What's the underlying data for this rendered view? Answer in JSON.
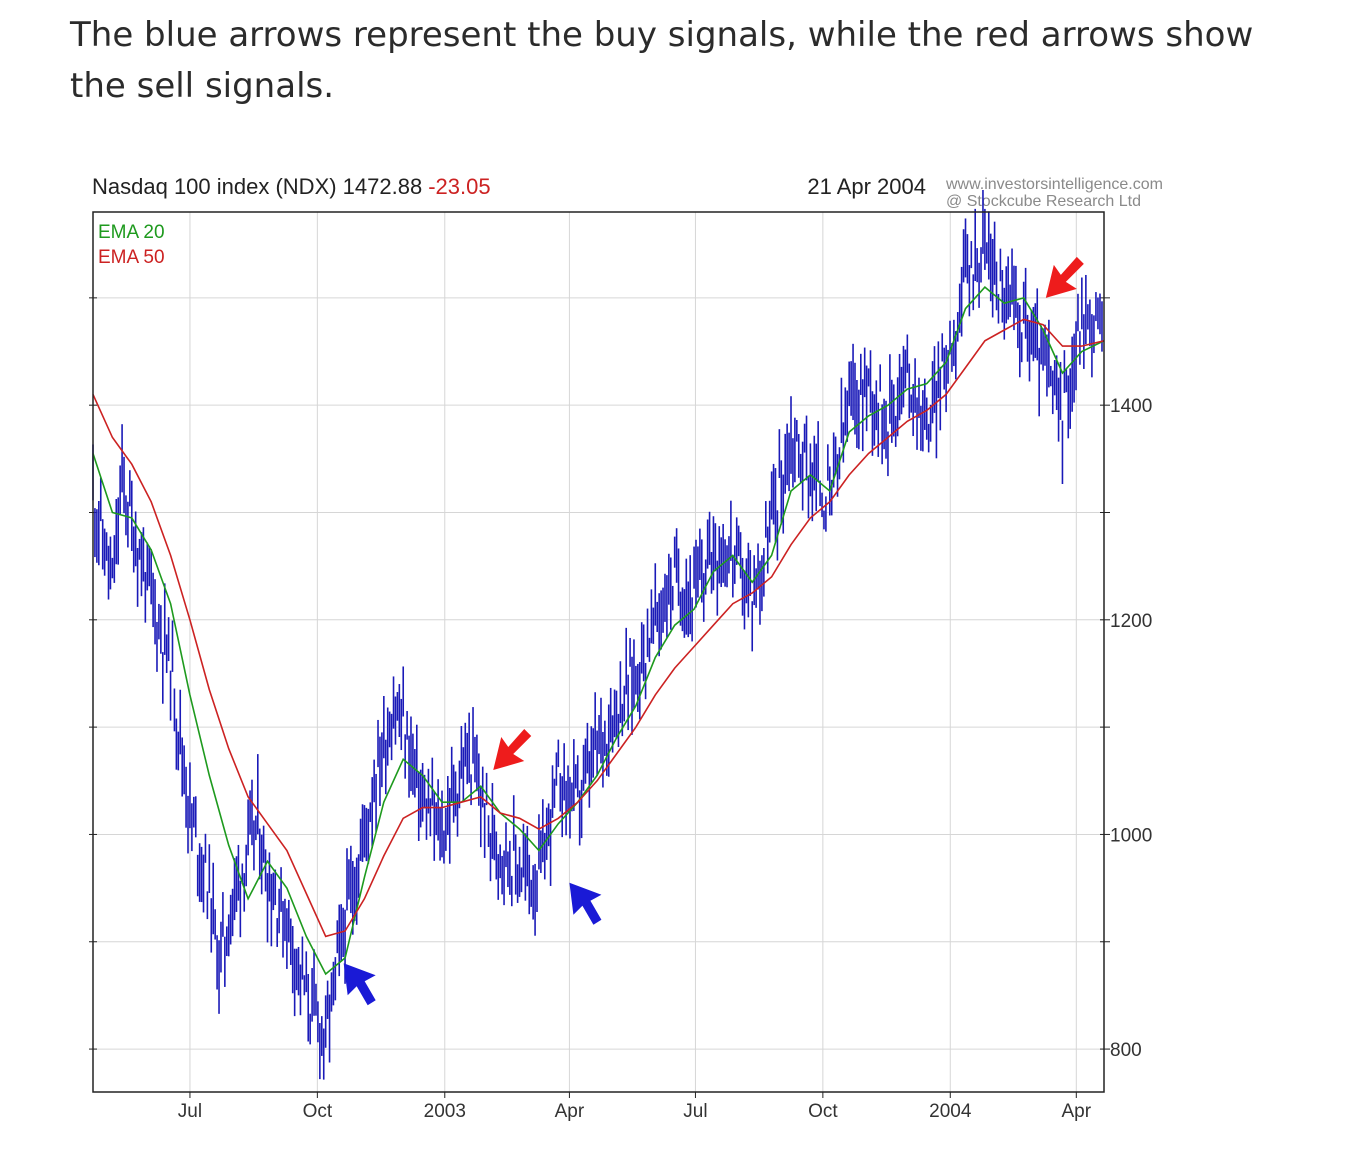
{
  "intro_text": "The blue arrows represent the buy signals, while the red arrows show the sell signals.",
  "chart_data": {
    "type": "line",
    "title": "Nasdaq 100 index (NDX) 1472.88",
    "change": "-23.05",
    "date": "21 Apr 2004",
    "source_line1": "www.investorsintelligence.com",
    "source_line2": "@ Stockcube Research Ltd",
    "colors": {
      "price": "#1a1ab8",
      "ema20": "#1e9a1e",
      "ema50": "#cc2222",
      "change": "#cc2222",
      "buy_arrow": "#1a1ad6",
      "sell_arrow": "#ee1c1c"
    },
    "xlabel": "",
    "ylabel": "",
    "xlim": [
      "2002-04-22",
      "2004-04-21"
    ],
    "ylim": [
      760,
      1580
    ],
    "grid": true,
    "y_ticks": [
      800,
      1000,
      1200,
      1400
    ],
    "x_ticks": [
      {
        "label": "Jul",
        "date": "2002-07-01"
      },
      {
        "label": "Oct",
        "date": "2002-10-01"
      },
      {
        "label": "2003",
        "date": "2003-01-01"
      },
      {
        "label": "Apr",
        "date": "2003-04-01"
      },
      {
        "label": "Jul",
        "date": "2003-07-01"
      },
      {
        "label": "Oct",
        "date": "2003-10-01"
      },
      {
        "label": "2004",
        "date": "2004-01-01"
      },
      {
        "label": "Apr",
        "date": "2004-04-01"
      }
    ],
    "series": [
      {
        "name": "EMA 20",
        "points": [
          [
            "2002-04-22",
            1355
          ],
          [
            "2002-05-06",
            1300
          ],
          [
            "2002-05-20",
            1295
          ],
          [
            "2002-06-03",
            1265
          ],
          [
            "2002-06-17",
            1215
          ],
          [
            "2002-07-01",
            1130
          ],
          [
            "2002-07-15",
            1055
          ],
          [
            "2002-07-29",
            990
          ],
          [
            "2002-08-12",
            940
          ],
          [
            "2002-08-26",
            975
          ],
          [
            "2002-09-09",
            950
          ],
          [
            "2002-09-23",
            905
          ],
          [
            "2002-10-07",
            870
          ],
          [
            "2002-10-21",
            885
          ],
          [
            "2002-11-04",
            960
          ],
          [
            "2002-11-18",
            1030
          ],
          [
            "2002-12-02",
            1070
          ],
          [
            "2002-12-16",
            1055
          ],
          [
            "2002-12-30",
            1030
          ],
          [
            "2003-01-13",
            1030
          ],
          [
            "2003-01-27",
            1045
          ],
          [
            "2003-02-10",
            1020
          ],
          [
            "2003-02-24",
            1005
          ],
          [
            "2003-03-10",
            985
          ],
          [
            "2003-03-24",
            1010
          ],
          [
            "2003-04-07",
            1030
          ],
          [
            "2003-04-21",
            1055
          ],
          [
            "2003-05-05",
            1090
          ],
          [
            "2003-05-19",
            1120
          ],
          [
            "2003-06-02",
            1165
          ],
          [
            "2003-06-16",
            1195
          ],
          [
            "2003-06-30",
            1210
          ],
          [
            "2003-07-14",
            1245
          ],
          [
            "2003-07-28",
            1260
          ],
          [
            "2003-08-11",
            1235
          ],
          [
            "2003-08-25",
            1260
          ],
          [
            "2003-09-08",
            1320
          ],
          [
            "2003-09-22",
            1335
          ],
          [
            "2003-10-06",
            1320
          ],
          [
            "2003-10-20",
            1375
          ],
          [
            "2003-11-03",
            1390
          ],
          [
            "2003-11-17",
            1400
          ],
          [
            "2003-12-01",
            1415
          ],
          [
            "2003-12-15",
            1420
          ],
          [
            "2003-12-29",
            1440
          ],
          [
            "2004-01-12",
            1490
          ],
          [
            "2004-01-26",
            1510
          ],
          [
            "2004-02-09",
            1495
          ],
          [
            "2004-02-23",
            1500
          ],
          [
            "2004-03-08",
            1470
          ],
          [
            "2004-03-22",
            1430
          ],
          [
            "2004-04-05",
            1450
          ],
          [
            "2004-04-21",
            1460
          ]
        ]
      },
      {
        "name": "EMA 50",
        "points": [
          [
            "2002-04-22",
            1410
          ],
          [
            "2002-05-06",
            1370
          ],
          [
            "2002-05-20",
            1345
          ],
          [
            "2002-06-03",
            1310
          ],
          [
            "2002-06-17",
            1260
          ],
          [
            "2002-07-01",
            1200
          ],
          [
            "2002-07-15",
            1135
          ],
          [
            "2002-07-29",
            1080
          ],
          [
            "2002-08-12",
            1035
          ],
          [
            "2002-08-26",
            1010
          ],
          [
            "2002-09-09",
            985
          ],
          [
            "2002-09-23",
            945
          ],
          [
            "2002-10-07",
            905
          ],
          [
            "2002-10-21",
            910
          ],
          [
            "2002-11-04",
            940
          ],
          [
            "2002-11-18",
            980
          ],
          [
            "2002-12-02",
            1015
          ],
          [
            "2002-12-16",
            1025
          ],
          [
            "2002-12-30",
            1025
          ],
          [
            "2003-01-13",
            1030
          ],
          [
            "2003-01-27",
            1035
          ],
          [
            "2003-02-10",
            1020
          ],
          [
            "2003-02-24",
            1015
          ],
          [
            "2003-03-10",
            1005
          ],
          [
            "2003-03-24",
            1015
          ],
          [
            "2003-04-07",
            1030
          ],
          [
            "2003-04-21",
            1050
          ],
          [
            "2003-05-05",
            1075
          ],
          [
            "2003-05-19",
            1100
          ],
          [
            "2003-06-02",
            1130
          ],
          [
            "2003-06-16",
            1155
          ],
          [
            "2003-06-30",
            1175
          ],
          [
            "2003-07-14",
            1195
          ],
          [
            "2003-07-28",
            1215
          ],
          [
            "2003-08-11",
            1225
          ],
          [
            "2003-08-25",
            1240
          ],
          [
            "2003-09-08",
            1270
          ],
          [
            "2003-09-22",
            1295
          ],
          [
            "2003-10-06",
            1310
          ],
          [
            "2003-10-20",
            1335
          ],
          [
            "2003-11-03",
            1355
          ],
          [
            "2003-11-17",
            1370
          ],
          [
            "2003-12-01",
            1385
          ],
          [
            "2003-12-15",
            1395
          ],
          [
            "2003-12-29",
            1410
          ],
          [
            "2004-01-12",
            1435
          ],
          [
            "2004-01-26",
            1460
          ],
          [
            "2004-02-09",
            1470
          ],
          [
            "2004-02-23",
            1480
          ],
          [
            "2004-03-08",
            1475
          ],
          [
            "2004-03-22",
            1455
          ],
          [
            "2004-04-05",
            1455
          ],
          [
            "2004-04-21",
            1460
          ]
        ]
      },
      {
        "name": "",
        "points": [
          [
            "2002-04-22",
            1320
          ],
          [
            "2002-05-06",
            1230
          ],
          [
            "2002-05-13",
            1330
          ],
          [
            "2002-05-20",
            1290
          ],
          [
            "2002-06-03",
            1220
          ],
          [
            "2002-06-17",
            1160
          ],
          [
            "2002-07-01",
            1020
          ],
          [
            "2002-07-15",
            950
          ],
          [
            "2002-07-22",
            880
          ],
          [
            "2002-08-05",
            960
          ],
          [
            "2002-08-19",
            1010
          ],
          [
            "2002-08-26",
            960
          ],
          [
            "2002-09-09",
            920
          ],
          [
            "2002-09-23",
            850
          ],
          [
            "2002-10-07",
            810
          ],
          [
            "2002-10-21",
            920
          ],
          [
            "2002-11-04",
            1000
          ],
          [
            "2002-11-11",
            1050
          ],
          [
            "2002-11-25",
            1120
          ],
          [
            "2002-12-02",
            1100
          ],
          [
            "2002-12-16",
            1030
          ],
          [
            "2002-12-30",
            1000
          ],
          [
            "2003-01-13",
            1060
          ],
          [
            "2003-01-20",
            1070
          ],
          [
            "2003-02-03",
            1000
          ],
          [
            "2003-02-17",
            980
          ],
          [
            "2003-03-03",
            960
          ],
          [
            "2003-03-10",
            960
          ],
          [
            "2003-03-24",
            1050
          ],
          [
            "2003-04-07",
            1030
          ],
          [
            "2003-04-21",
            1080
          ],
          [
            "2003-05-05",
            1120
          ],
          [
            "2003-05-19",
            1150
          ],
          [
            "2003-06-02",
            1200
          ],
          [
            "2003-06-16",
            1240
          ],
          [
            "2003-06-30",
            1220
          ],
          [
            "2003-07-14",
            1270
          ],
          [
            "2003-07-28",
            1260
          ],
          [
            "2003-08-11",
            1220
          ],
          [
            "2003-08-25",
            1290
          ],
          [
            "2003-09-08",
            1370
          ],
          [
            "2003-09-22",
            1340
          ],
          [
            "2003-10-06",
            1310
          ],
          [
            "2003-10-20",
            1400
          ],
          [
            "2003-11-03",
            1420
          ],
          [
            "2003-11-17",
            1390
          ],
          [
            "2003-12-01",
            1430
          ],
          [
            "2003-12-15",
            1380
          ],
          [
            "2003-12-29",
            1440
          ],
          [
            "2004-01-12",
            1520
          ],
          [
            "2004-01-26",
            1550
          ],
          [
            "2004-02-09",
            1500
          ],
          [
            "2004-02-23",
            1480
          ],
          [
            "2004-03-08",
            1440
          ],
          [
            "2004-03-22",
            1390
          ],
          [
            "2004-04-05",
            1480
          ],
          [
            "2004-04-21",
            1473
          ]
        ]
      }
    ],
    "legend": {
      "placement": "top-left",
      "items": [
        "EMA 20",
        "EMA 50"
      ]
    },
    "signals": [
      {
        "type": "buy",
        "date": "2002-10-20",
        "value": 880
      },
      {
        "type": "sell",
        "date": "2003-02-05",
        "value": 1060
      },
      {
        "type": "buy",
        "date": "2003-04-01",
        "value": 955
      },
      {
        "type": "sell",
        "date": "2004-03-10",
        "value": 1500
      }
    ]
  }
}
